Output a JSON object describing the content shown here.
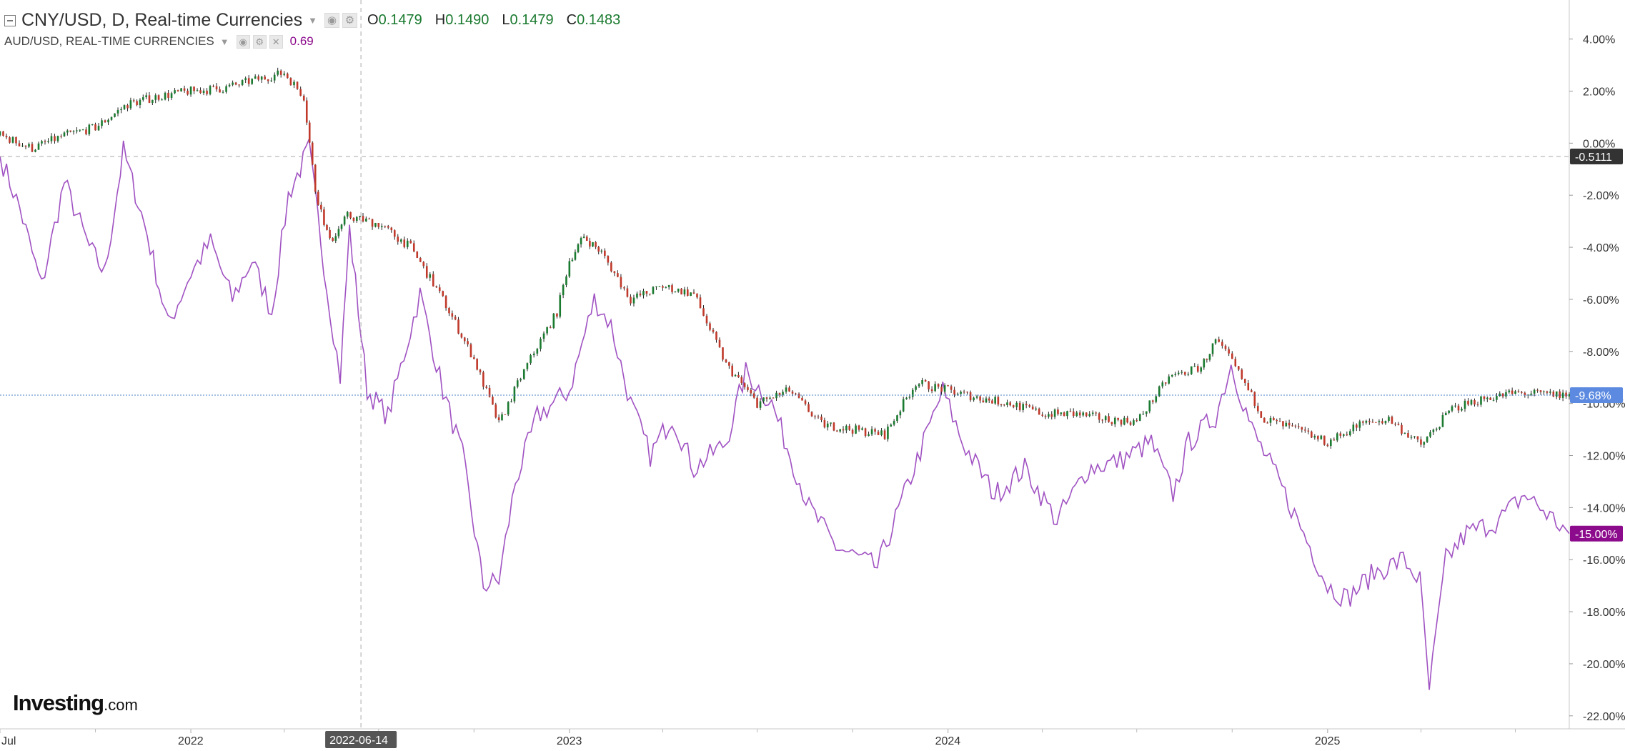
{
  "chart_data": {
    "type": "line",
    "symbol": "CNY/USD, D, Real-time Currencies",
    "ohlc": {
      "open": "0.1479",
      "high": "0.1490",
      "low": "0.1479",
      "close": "0.1483"
    },
    "compare_symbol": "AUD/USD, REAL-TIME CURRENCIES",
    "compare_value": "0.69",
    "y_ticks": [
      "4.00%",
      "2.00%",
      "0.00%",
      "-2.00%",
      "-4.00%",
      "-6.00%",
      "-8.00%",
      "-10.00%",
      "-12.00%",
      "-14.00%",
      "-16.00%",
      "-18.00%",
      "-20.00%",
      "-22.00%"
    ],
    "ylim": [
      -22.5,
      5.5
    ],
    "x_range": [
      "2021-07-01",
      "2025-08-22"
    ],
    "x_labels": [
      {
        "label": "Jul",
        "date": "2021-07-01"
      },
      {
        "label": "2022",
        "date": "2022-01-01"
      },
      {
        "label": "2023",
        "date": "2023-01-01"
      },
      {
        "label": "2024",
        "date": "2024-01-01"
      },
      {
        "label": "2025",
        "date": "2025-01-01"
      }
    ],
    "crosshair": {
      "date_label": "2022-06-14",
      "date": "2022-06-14",
      "value_label": "-0.5111",
      "value": -0.5111
    },
    "series": [
      {
        "name": "CNY/USD",
        "color": "#1a7a2f",
        "last_label": "-9.68%",
        "last_value": -9.68,
        "points": [
          [
            "2021-07-01",
            0.3
          ],
          [
            "2021-08-01",
            -0.2
          ],
          [
            "2021-09-01",
            0.3
          ],
          [
            "2021-10-01",
            0.6
          ],
          [
            "2021-11-01",
            1.5
          ],
          [
            "2021-12-01",
            1.8
          ],
          [
            "2022-01-01",
            2.0
          ],
          [
            "2022-02-01",
            2.1
          ],
          [
            "2022-03-01",
            2.4
          ],
          [
            "2022-04-01",
            2.7
          ],
          [
            "2022-04-20",
            1.8
          ],
          [
            "2022-05-01",
            -1.8
          ],
          [
            "2022-05-15",
            -3.8
          ],
          [
            "2022-06-01",
            -2.8
          ],
          [
            "2022-07-01",
            -3.1
          ],
          [
            "2022-08-01",
            -4.0
          ],
          [
            "2022-09-01",
            -6.0
          ],
          [
            "2022-10-01",
            -8.3
          ],
          [
            "2022-10-25",
            -10.8
          ],
          [
            "2022-11-15",
            -9.0
          ],
          [
            "2022-12-01",
            -7.8
          ],
          [
            "2022-12-20",
            -6.5
          ],
          [
            "2023-01-01",
            -4.5
          ],
          [
            "2023-01-15",
            -3.6
          ],
          [
            "2023-02-01",
            -4.2
          ],
          [
            "2023-03-01",
            -6.0
          ],
          [
            "2023-04-01",
            -5.5
          ],
          [
            "2023-05-01",
            -5.8
          ],
          [
            "2023-06-01",
            -8.5
          ],
          [
            "2023-07-01",
            -10.0
          ],
          [
            "2023-08-01",
            -9.5
          ],
          [
            "2023-09-01",
            -10.8
          ],
          [
            "2023-10-01",
            -11.0
          ],
          [
            "2023-11-01",
            -11.2
          ],
          [
            "2023-12-01",
            -9.2
          ],
          [
            "2024-01-01",
            -9.5
          ],
          [
            "2024-02-01",
            -9.8
          ],
          [
            "2024-03-01",
            -10.0
          ],
          [
            "2024-04-01",
            -10.4
          ],
          [
            "2024-05-01",
            -10.4
          ],
          [
            "2024-06-01",
            -10.6
          ],
          [
            "2024-07-01",
            -10.7
          ],
          [
            "2024-08-01",
            -9.0
          ],
          [
            "2024-09-01",
            -8.6
          ],
          [
            "2024-09-15",
            -7.6
          ],
          [
            "2024-10-01",
            -8.4
          ],
          [
            "2024-11-01",
            -10.6
          ],
          [
            "2024-12-01",
            -11.0
          ],
          [
            "2025-01-01",
            -11.5
          ],
          [
            "2025-02-01",
            -10.8
          ],
          [
            "2025-03-01",
            -10.6
          ],
          [
            "2025-04-01",
            -11.6
          ],
          [
            "2025-05-01",
            -10.2
          ],
          [
            "2025-06-01",
            -9.8
          ],
          [
            "2025-07-01",
            -9.6
          ],
          [
            "2025-08-22",
            -9.68
          ]
        ]
      },
      {
        "name": "AUD/USD",
        "color": "#a052c2",
        "last_label": "-15.00%",
        "last_value": -15.0,
        "points": [
          [
            "2021-07-01",
            -0.5
          ],
          [
            "2021-07-20",
            -2.5
          ],
          [
            "2021-08-10",
            -5.5
          ],
          [
            "2021-09-01",
            -1.5
          ],
          [
            "2021-09-25",
            -4.0
          ],
          [
            "2021-10-10",
            -5.0
          ],
          [
            "2021-10-28",
            -0.3
          ],
          [
            "2021-11-20",
            -3.5
          ],
          [
            "2021-12-10",
            -7.0
          ],
          [
            "2022-01-01",
            -5.0
          ],
          [
            "2022-01-20",
            -3.8
          ],
          [
            "2022-02-10",
            -6.0
          ],
          [
            "2022-03-01",
            -4.5
          ],
          [
            "2022-03-20",
            -6.5
          ],
          [
            "2022-04-05",
            -2.0
          ],
          [
            "2022-04-25",
            -0.2
          ],
          [
            "2022-05-12",
            -5.5
          ],
          [
            "2022-05-25",
            -9.0
          ],
          [
            "2022-06-03",
            -3.3
          ],
          [
            "2022-06-20",
            -9.5
          ],
          [
            "2022-07-10",
            -10.5
          ],
          [
            "2022-08-10",
            -5.8
          ],
          [
            "2022-09-01",
            -9.5
          ],
          [
            "2022-09-20",
            -12.0
          ],
          [
            "2022-10-10",
            -17.0
          ],
          [
            "2022-10-25",
            -16.8
          ],
          [
            "2022-11-10",
            -13.0
          ],
          [
            "2022-12-01",
            -10.5
          ],
          [
            "2023-01-01",
            -9.5
          ],
          [
            "2023-01-25",
            -6.0
          ],
          [
            "2023-02-10",
            -7.0
          ],
          [
            "2023-03-01",
            -10.0
          ],
          [
            "2023-03-20",
            -12.0
          ],
          [
            "2023-04-10",
            -10.5
          ],
          [
            "2023-05-01",
            -12.5
          ],
          [
            "2023-06-01",
            -11.5
          ],
          [
            "2023-06-20",
            -8.8
          ],
          [
            "2023-07-15",
            -10.0
          ],
          [
            "2023-08-20",
            -14.0
          ],
          [
            "2023-09-15",
            -15.5
          ],
          [
            "2023-10-10",
            -16.0
          ],
          [
            "2023-10-25",
            -16.3
          ],
          [
            "2023-11-20",
            -13.5
          ],
          [
            "2023-12-27",
            -9.5
          ],
          [
            "2024-01-15",
            -11.5
          ],
          [
            "2024-02-15",
            -13.5
          ],
          [
            "2024-03-15",
            -12.5
          ],
          [
            "2024-04-15",
            -14.5
          ],
          [
            "2024-05-15",
            -12.5
          ],
          [
            "2024-06-15",
            -12.2
          ],
          [
            "2024-07-15",
            -11.5
          ],
          [
            "2024-08-05",
            -13.5
          ],
          [
            "2024-08-20",
            -11.5
          ],
          [
            "2024-09-15",
            -10.5
          ],
          [
            "2024-09-30",
            -8.5
          ],
          [
            "2024-10-20",
            -11.0
          ],
          [
            "2024-11-15",
            -13.0
          ],
          [
            "2024-12-15",
            -15.5
          ],
          [
            "2025-01-01",
            -17.0
          ],
          [
            "2025-01-20",
            -17.5
          ],
          [
            "2025-02-15",
            -16.5
          ],
          [
            "2025-03-15",
            -16.0
          ],
          [
            "2025-03-31",
            -16.8
          ],
          [
            "2025-04-09",
            -21.0
          ],
          [
            "2025-04-25",
            -16.0
          ],
          [
            "2025-05-15",
            -15.0
          ],
          [
            "2025-06-15",
            -14.5
          ],
          [
            "2025-07-10",
            -13.5
          ],
          [
            "2025-07-25",
            -14.0
          ],
          [
            "2025-08-22",
            -15.0
          ]
        ]
      }
    ],
    "reference_lines": [
      {
        "type": "current",
        "value": -9.68,
        "color": "#4a80c8"
      }
    ]
  },
  "logo": {
    "brand": "Investing",
    "suffix": ".com"
  }
}
